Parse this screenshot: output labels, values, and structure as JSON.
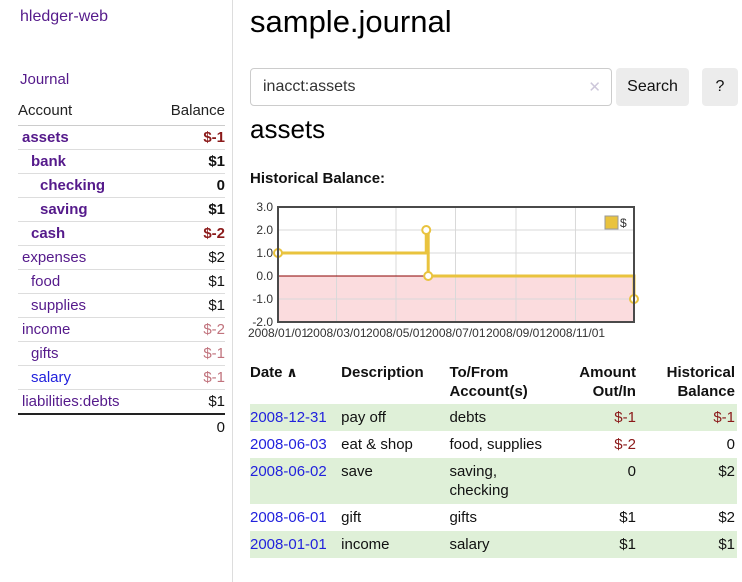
{
  "app": {
    "brand": "hledger-web"
  },
  "sidebar": {
    "journal_link": "Journal",
    "accounts": {
      "account_header": "Account",
      "balance_header": "Balance",
      "rows": [
        {
          "account": "assets",
          "balance": "$-1",
          "indent": 0,
          "bold": true,
          "negative": true,
          "blue": false
        },
        {
          "account": "bank",
          "balance": "$1",
          "indent": 1,
          "bold": true,
          "negative": false,
          "blue": false
        },
        {
          "account": "checking",
          "balance": "0",
          "indent": 2,
          "bold": true,
          "negative": false,
          "blue": false
        },
        {
          "account": "saving",
          "balance": "$1",
          "indent": 2,
          "bold": true,
          "negative": false,
          "blue": false
        },
        {
          "account": "cash",
          "balance": "$-2",
          "indent": 1,
          "bold": true,
          "negative": true,
          "blue": false
        },
        {
          "account": "expenses",
          "balance": "$2",
          "indent": 0,
          "bold": false,
          "negative": false,
          "blue": false
        },
        {
          "account": "food",
          "balance": "$1",
          "indent": 1,
          "bold": false,
          "negative": false,
          "blue": false
        },
        {
          "account": "supplies",
          "balance": "$1",
          "indent": 1,
          "bold": false,
          "negative": false,
          "blue": false
        },
        {
          "account": "income",
          "balance": "$-2",
          "indent": 0,
          "bold": false,
          "negative": true,
          "blue": false
        },
        {
          "account": "gifts",
          "balance": "$-1",
          "indent": 1,
          "bold": false,
          "negative": true,
          "blue": false
        },
        {
          "account": "salary",
          "balance": "$-1",
          "indent": 1,
          "bold": false,
          "negative": true,
          "blue": true
        },
        {
          "account": "liabilities:debts",
          "balance": "$1",
          "indent": 0,
          "bold": false,
          "negative": false,
          "blue": false
        }
      ],
      "total": "0"
    }
  },
  "main": {
    "title": "sample.journal",
    "search": {
      "value": "inacct:assets",
      "clear_icon": "✕",
      "search_button": "Search",
      "help_button": "?"
    },
    "account_heading": "assets",
    "chart_label": "Historical Balance:"
  },
  "chart_data": {
    "type": "line",
    "title": "Historical Balance",
    "step": true,
    "legend": [
      {
        "label": "$",
        "color": "#e9c33e"
      }
    ],
    "legend_position": "top-right",
    "x_range": [
      "2008-01-01",
      "2008-12-31"
    ],
    "ylim": [
      -2.0,
      3.0
    ],
    "yticks": [
      "3.0",
      "2.0",
      "1.0",
      "0.0",
      "-1.0",
      "-2.0"
    ],
    "xticks": [
      {
        "label": "2008/01/01",
        "date": "2008-01-01"
      },
      {
        "label": "2008/03/01",
        "date": "2008-03-01"
      },
      {
        "label": "2008/05/01",
        "date": "2008-05-01"
      },
      {
        "label": "2008/07/01",
        "date": "2008-07-01"
      },
      {
        "label": "2008/09/01",
        "date": "2008-09-01"
      },
      {
        "label": "2008/11/01",
        "date": "2008-11-01"
      }
    ],
    "series": [
      {
        "name": "$",
        "points": [
          [
            "2008-01-01",
            1
          ],
          [
            "2008-06-01",
            2
          ],
          [
            "2008-06-03",
            0
          ],
          [
            "2008-12-31",
            -1
          ]
        ]
      }
    ],
    "colors": {
      "line": "#e9c33e",
      "marker_fill": "#ffffff",
      "negative_region": "#fbdcde",
      "zero_line": "#8b0000",
      "grid": "#d9d9d9",
      "border": "#4a4a4a"
    }
  },
  "register": {
    "headers": [
      "Date",
      "Description",
      "To/From Account(s)",
      "Amount Out/In",
      "Historical Balance"
    ],
    "sort_icon": "∧",
    "rows": [
      {
        "date": "2008-12-31",
        "description": "pay off",
        "accounts": "debts",
        "amount": "$-1",
        "amount_negative": true,
        "balance": "$-1",
        "balance_negative": true
      },
      {
        "date": "2008-06-03",
        "description": "eat & shop",
        "accounts": "food, supplies",
        "amount": "$-2",
        "amount_negative": true,
        "balance": "0",
        "balance_negative": false
      },
      {
        "date": "2008-06-02",
        "description": "save",
        "accounts": "saving, checking",
        "amount": "0",
        "amount_negative": false,
        "balance": "$2",
        "balance_negative": false
      },
      {
        "date": "2008-06-01",
        "description": "gift",
        "accounts": "gifts",
        "amount": "$1",
        "amount_negative": false,
        "balance": "$2",
        "balance_negative": false
      },
      {
        "date": "2008-01-01",
        "description": "income",
        "accounts": "salary",
        "amount": "$1",
        "amount_negative": false,
        "balance": "$1",
        "balance_negative": false
      }
    ]
  }
}
